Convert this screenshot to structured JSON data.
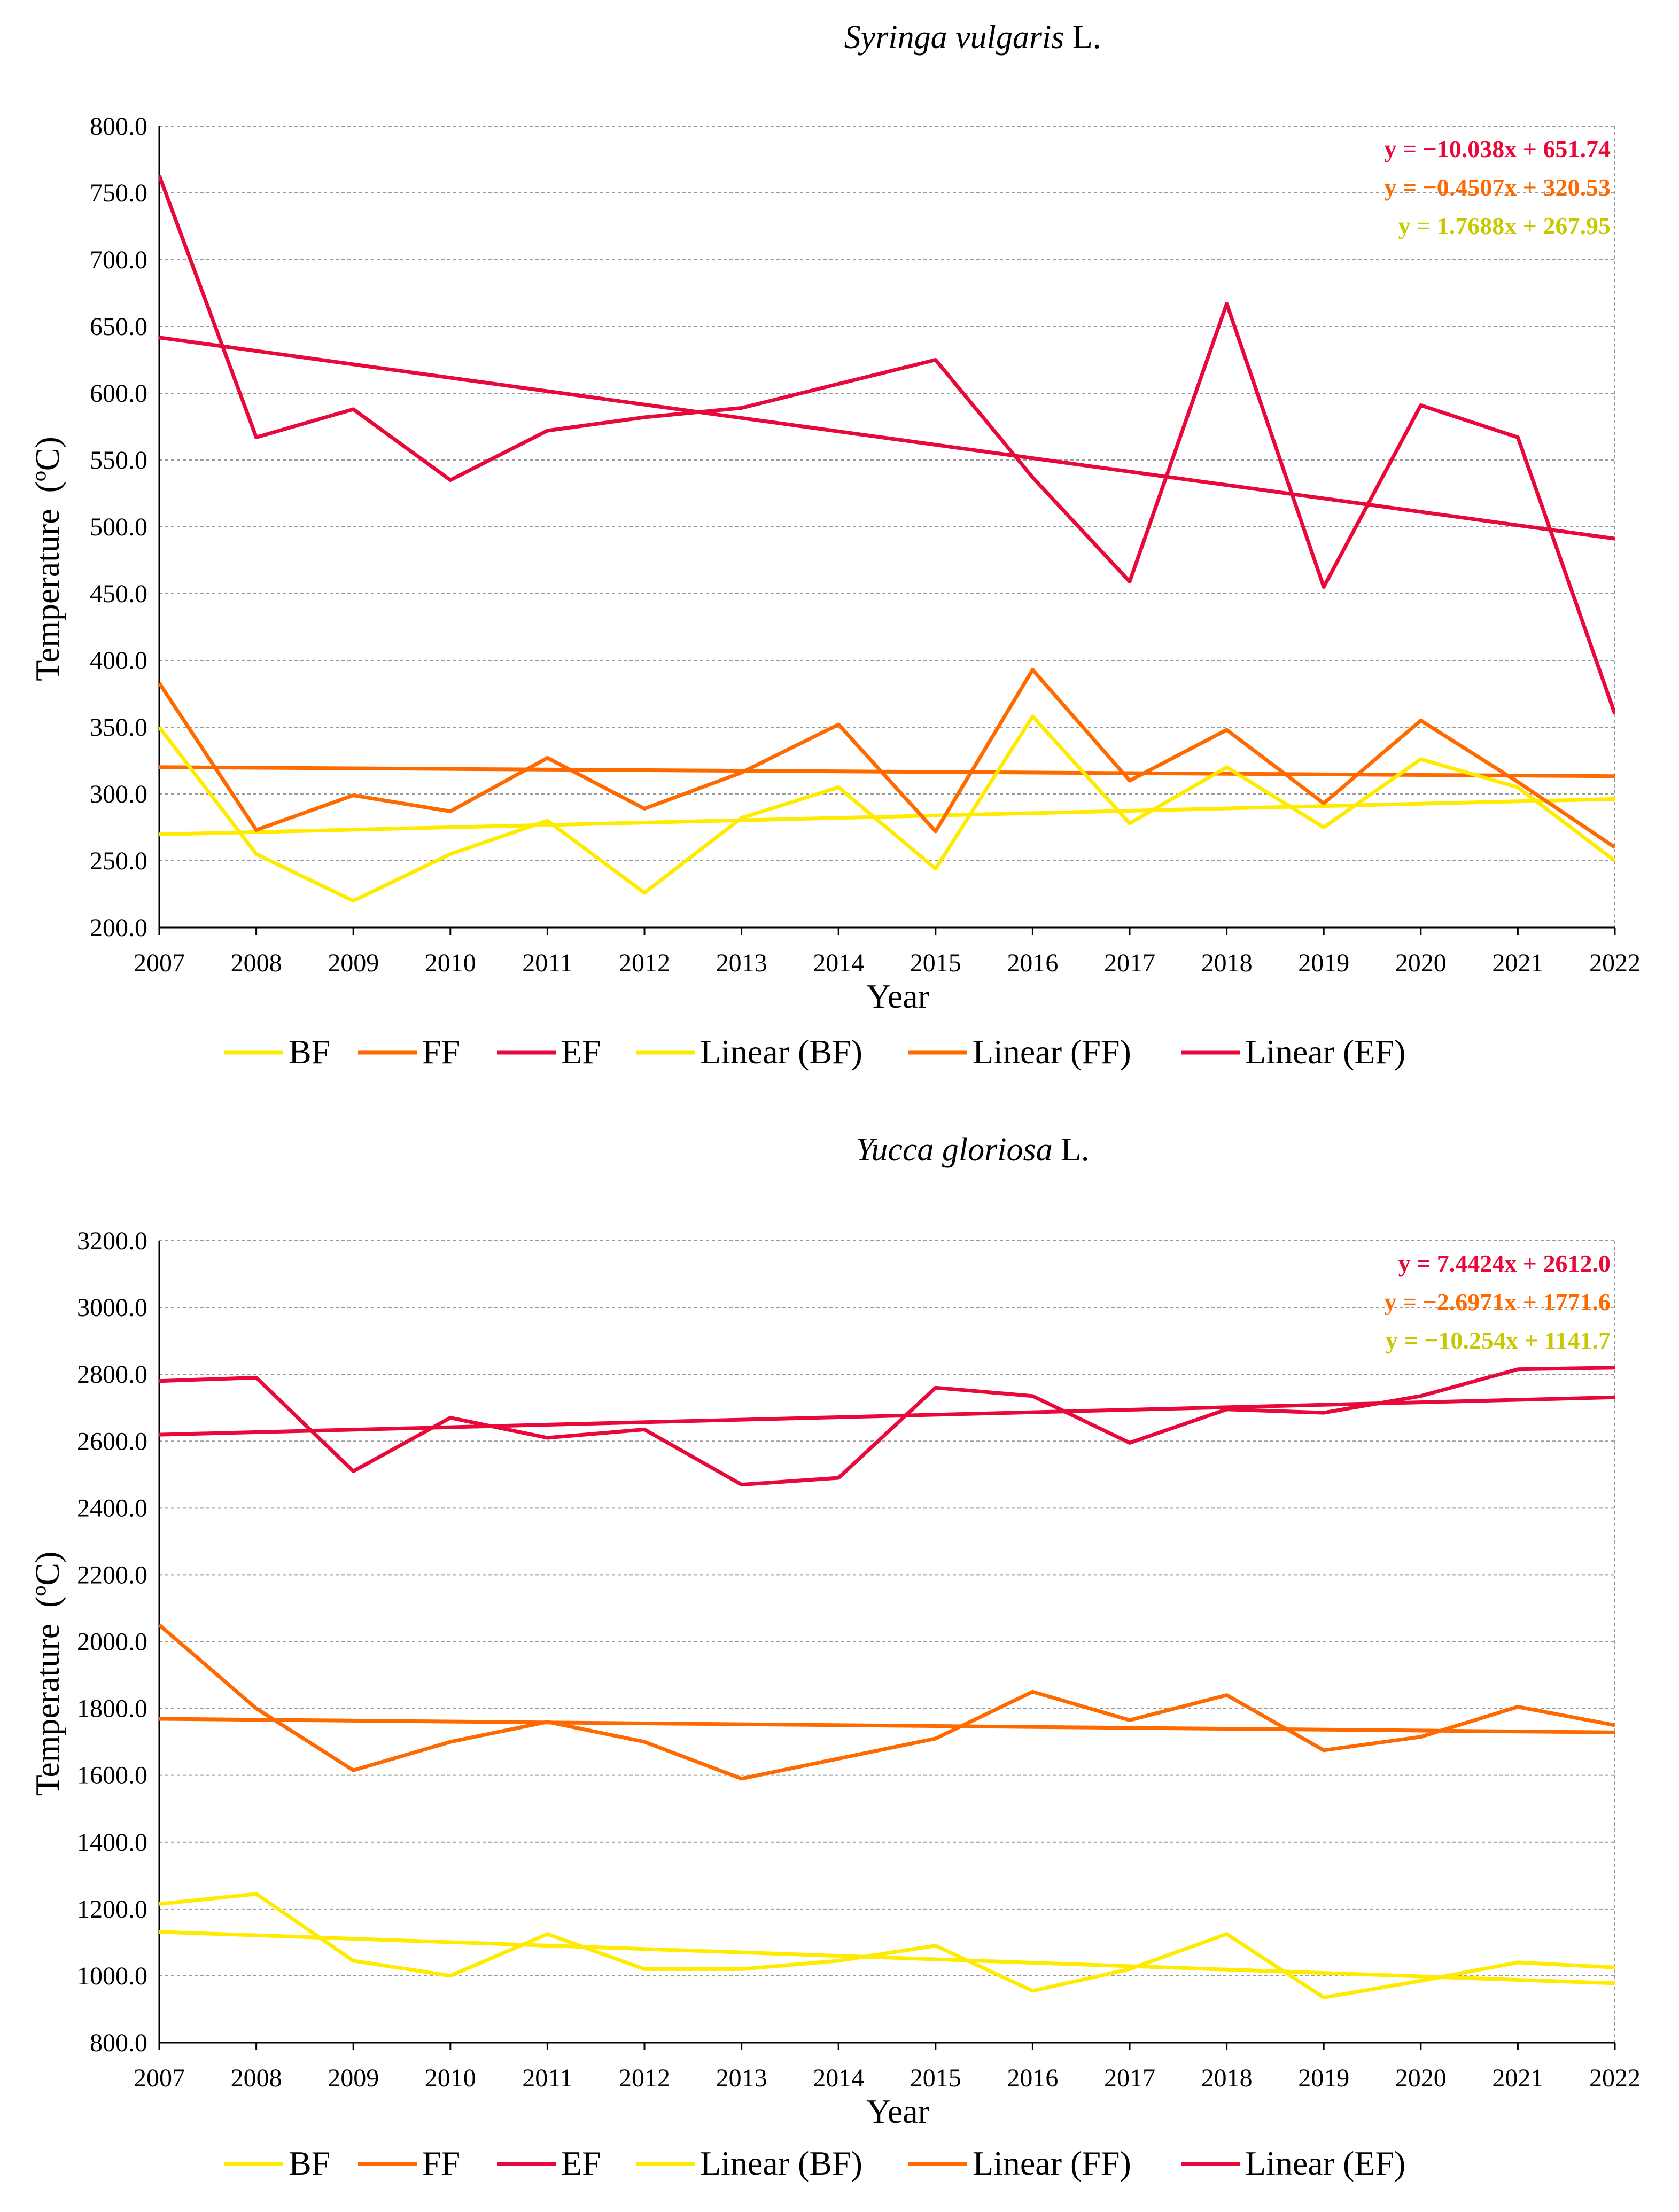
{
  "chart_data": [
    {
      "type": "line",
      "title_italic": "Syringa vulgaris",
      "title_suffix": " L.",
      "xlabel": "Year",
      "ylabel": "Temperature",
      "ylabel_unit": "(ºC)",
      "categories": [
        "2007",
        "2008",
        "2009",
        "2010",
        "2011",
        "2012",
        "2013",
        "2014",
        "2015",
        "2016",
        "2017",
        "2018",
        "2019",
        "2020",
        "2021",
        "2022"
      ],
      "ylim": [
        200,
        800
      ],
      "ystep": 50,
      "ytick_labels": [
        "200.0",
        "250.0",
        "300.0",
        "350.0",
        "400.0",
        "450.0",
        "500.0",
        "550.0",
        "600.0",
        "650.0",
        "700.0",
        "750.0",
        "800.0"
      ],
      "grid": true,
      "series": [
        {
          "name": "BF",
          "color": "#ffeb00",
          "values": [
            350,
            255,
            220,
            255,
            280,
            226,
            282,
            305,
            244,
            358,
            278,
            320,
            275,
            326,
            305,
            250
          ]
        },
        {
          "name": "FF",
          "color": "#ff6a00",
          "values": [
            383,
            273,
            299,
            287,
            327,
            289,
            316,
            352,
            272,
            393,
            310,
            348,
            293,
            355,
            309,
            260
          ]
        },
        {
          "name": "EF",
          "color": "#e8093a",
          "values": [
            763,
            567,
            588,
            535,
            572,
            582,
            589,
            607,
            625,
            537,
            459,
            667,
            455,
            591,
            567,
            360
          ]
        }
      ],
      "trendlines": [
        {
          "name": "Linear (BF)",
          "color": "#ffeb00",
          "slope": 1.7688,
          "intercept": 267.95,
          "equation": "y = 1.7688x + 267.95",
          "eq_color": "#c8c800"
        },
        {
          "name": "Linear (FF)",
          "color": "#ff6a00",
          "slope": -0.4507,
          "intercept": 320.53,
          "equation": "y = −0.4507x + 320.53",
          "eq_color": "#ff6a00"
        },
        {
          "name": "Linear (EF)",
          "color": "#e8093a",
          "slope": -10.038,
          "intercept": 651.74,
          "equation": "y = −10.038x + 651.74",
          "eq_color": "#e8093a"
        }
      ],
      "legend": [
        "BF",
        "FF",
        "EF",
        "Linear (BF)",
        "Linear (FF)",
        "Linear (EF)"
      ],
      "legend_position": "bottom"
    },
    {
      "type": "line",
      "title_italic": "Yucca gloriosa",
      "title_suffix": " L.",
      "xlabel": "Year",
      "ylabel": "Temperature",
      "ylabel_unit": "(ºC)",
      "categories": [
        "2007",
        "2008",
        "2009",
        "2010",
        "2011",
        "2012",
        "2013",
        "2014",
        "2015",
        "2016",
        "2017",
        "2018",
        "2019",
        "2020",
        "2021",
        "2022"
      ],
      "ylim": [
        800,
        3200
      ],
      "ystep": 200,
      "ytick_labels": [
        "800.0",
        "1000.0",
        "1200.0",
        "1400.0",
        "1600.0",
        "1800.0",
        "2000.0",
        "2200.0",
        "2400.0",
        "2600.0",
        "2800.0",
        "3000.0",
        "3200.0"
      ],
      "grid": true,
      "series": [
        {
          "name": "BF",
          "color": "#ffeb00",
          "values": [
            1215,
            1245,
            1045,
            1000,
            1125,
            1020,
            1020,
            1045,
            1090,
            955,
            1020,
            1125,
            935,
            985,
            1040,
            1025
          ]
        },
        {
          "name": "FF",
          "color": "#ff6a00",
          "values": [
            2050,
            1800,
            1615,
            1700,
            1760,
            1700,
            1590,
            1650,
            1710,
            1850,
            1765,
            1840,
            1675,
            1715,
            1805,
            1750
          ]
        },
        {
          "name": "EF",
          "color": "#e8093a",
          "values": [
            2780,
            2790,
            2510,
            2670,
            2610,
            2635,
            2470,
            2490,
            2760,
            2735,
            2595,
            2695,
            2685,
            2735,
            2815,
            2820
          ]
        }
      ],
      "trendlines": [
        {
          "name": "Linear (BF)",
          "color": "#ffeb00",
          "slope": -10.254,
          "intercept": 1141.7,
          "equation": "y = −10.254x + 1141.7",
          "eq_color": "#c8c800"
        },
        {
          "name": "Linear (FF)",
          "color": "#ff6a00",
          "slope": -2.6971,
          "intercept": 1771.6,
          "equation": "y = −2.6971x + 1771.6",
          "eq_color": "#ff6a00"
        },
        {
          "name": "Linear (EF)",
          "color": "#e8093a",
          "slope": 7.4424,
          "intercept": 2612.0,
          "equation": "y = 7.4424x + 2612.0",
          "eq_color": "#e8093a"
        }
      ],
      "legend": [
        "BF",
        "FF",
        "EF",
        "Linear (BF)",
        "Linear (FF)",
        "Linear (EF)"
      ],
      "legend_position": "bottom"
    }
  ]
}
